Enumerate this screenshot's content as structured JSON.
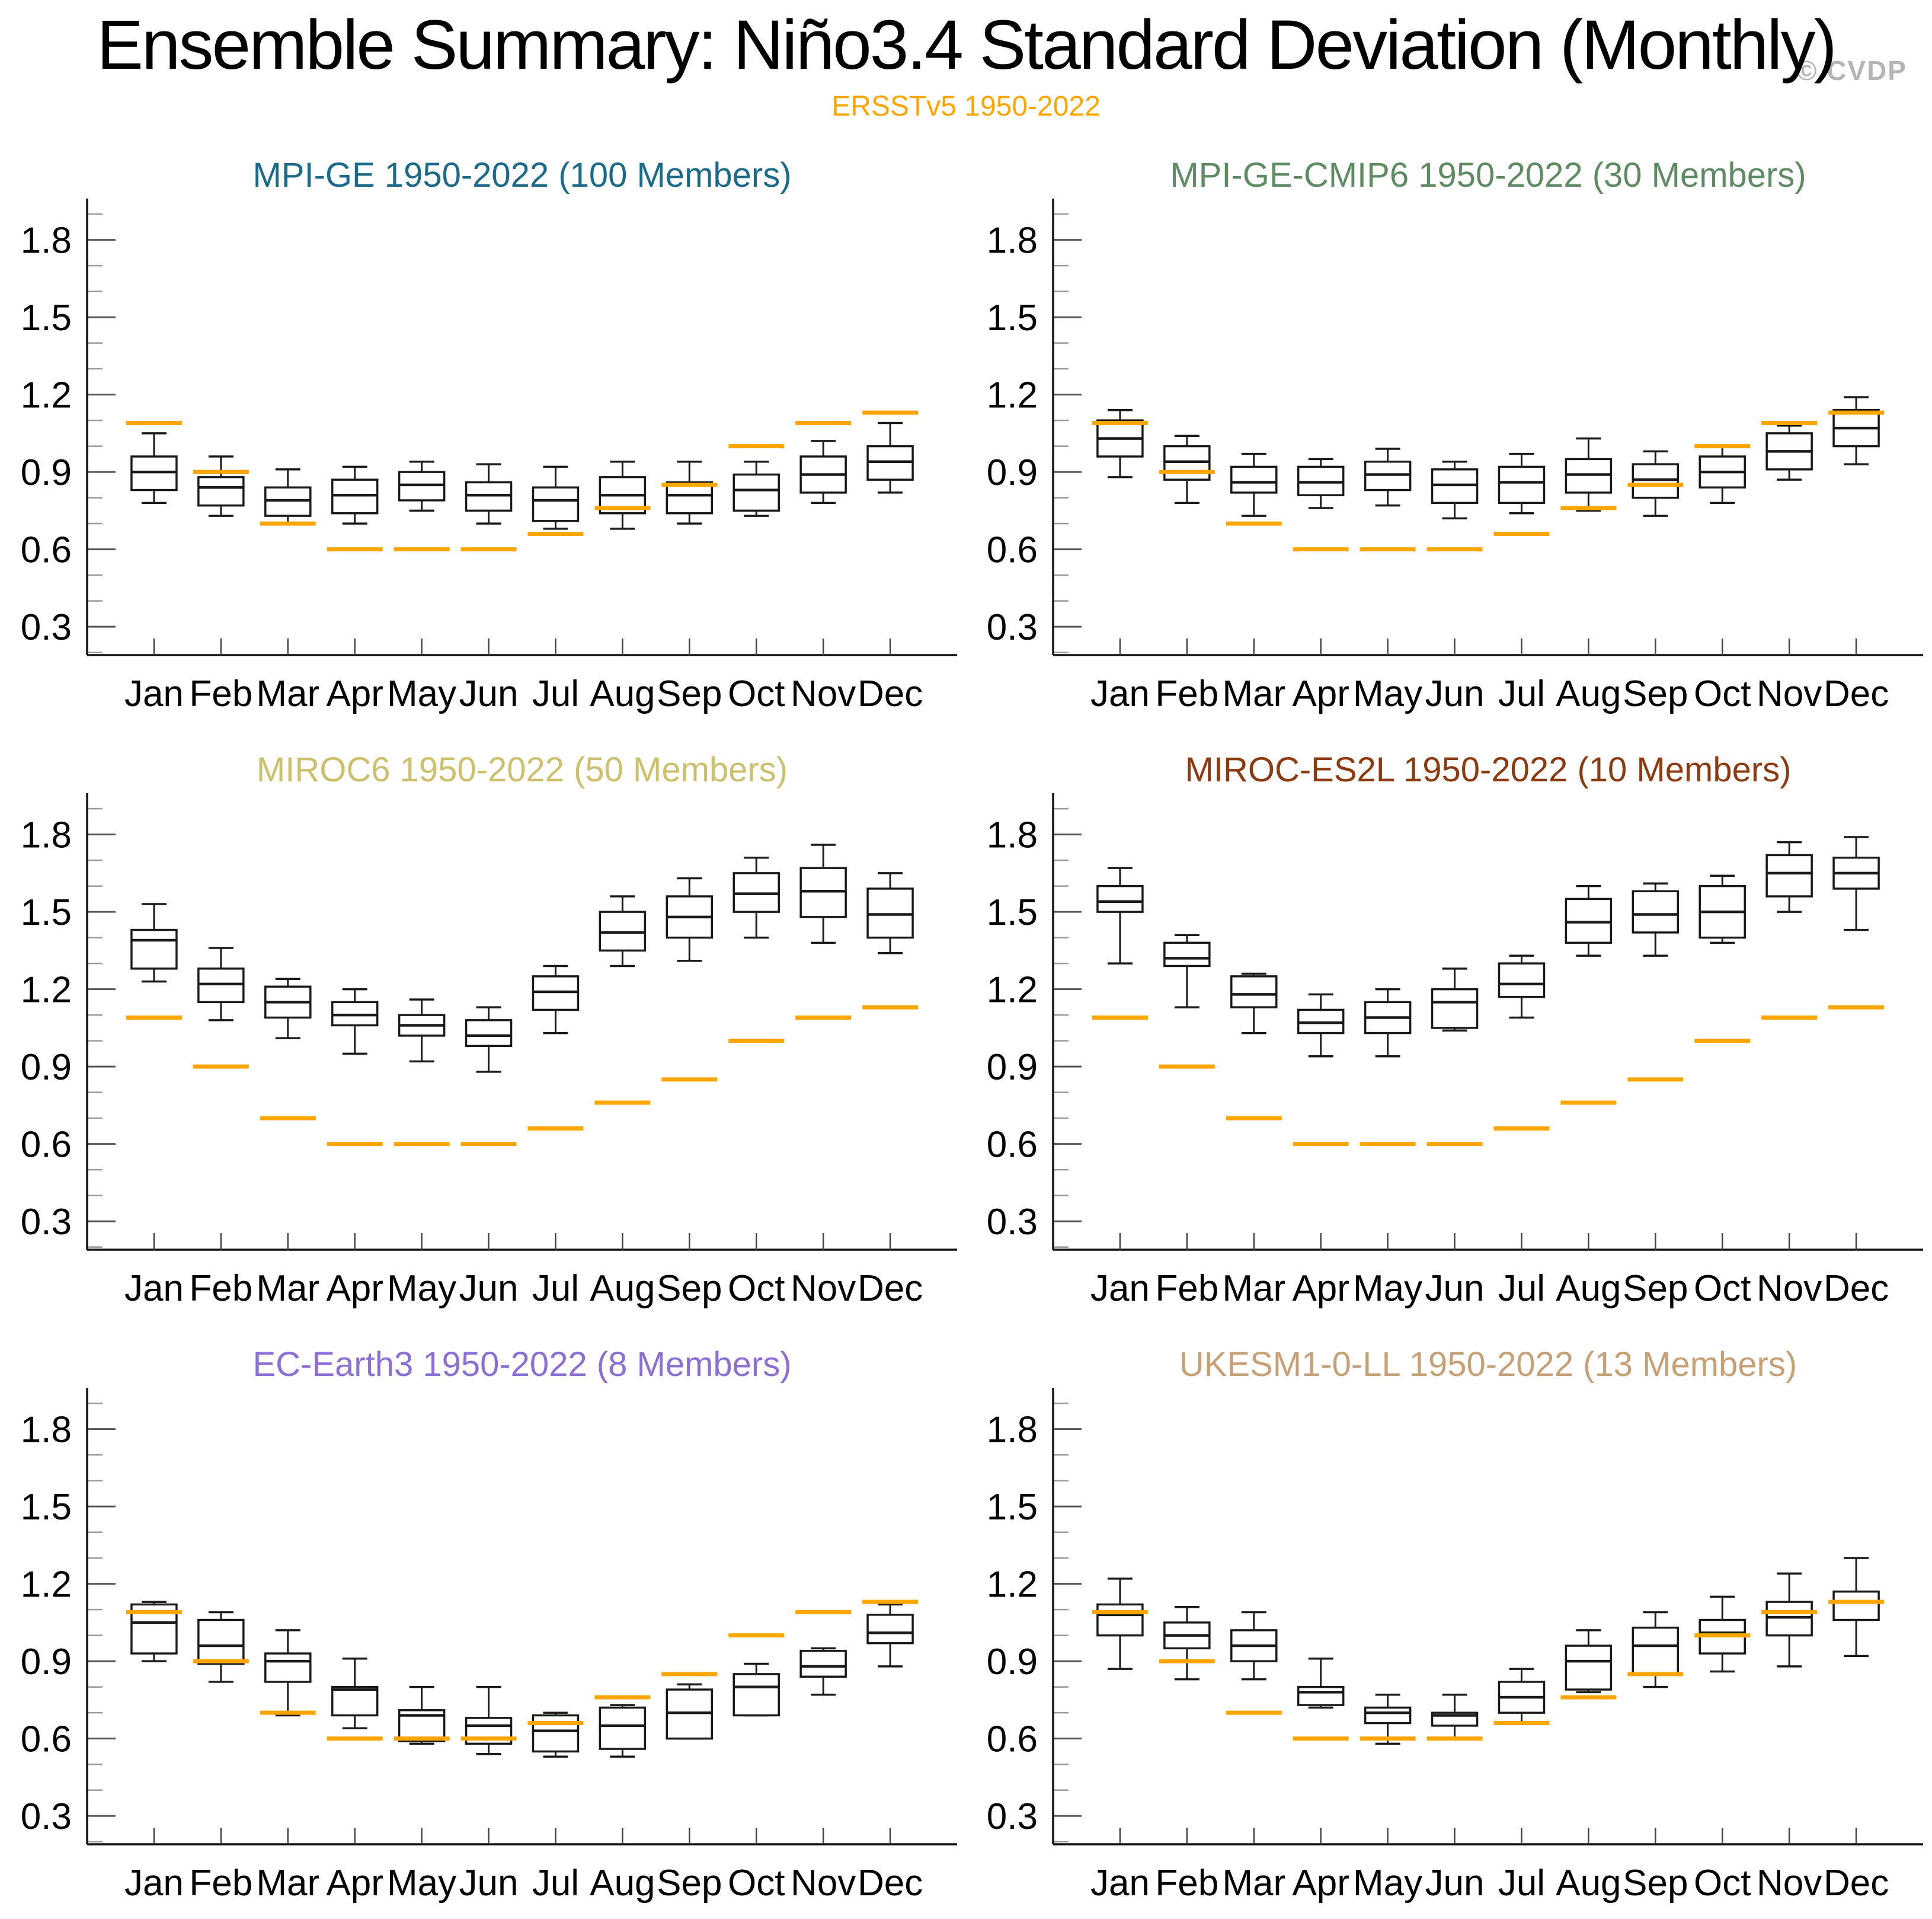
{
  "header": {
    "title": "Ensemble Summary: Niño3.4 Standard Deviation (Monthly)",
    "subtitle": "ERSSTv5 1950-2022",
    "subtitle_color": "#ffa500",
    "watermark": "© CVDP",
    "watermark_color": "#b5b5b5"
  },
  "chart_data": {
    "type": "box",
    "title": "Ensemble Summary: Niño3.4 Standard Deviation (Monthly)",
    "subtitle": "ERSSTv5 1950-2022",
    "xlabel": "",
    "ylabel": "",
    "months": [
      "Jan",
      "Feb",
      "Mar",
      "Apr",
      "May",
      "Jun",
      "Jul",
      "Aug",
      "Sep",
      "Oct",
      "Nov",
      "Dec"
    ],
    "y_ticks": [
      0.3,
      0.6,
      0.9,
      1.2,
      1.5,
      1.8
    ],
    "y_tick_labels": [
      "0.3",
      "0.6",
      "0.9",
      "1.2",
      "1.5",
      "1.8"
    ],
    "y_minor_step": 0.1,
    "ylim": [
      0.19,
      1.96
    ],
    "grid": false,
    "box_color": "#1a1a1a",
    "observation": {
      "label": "ERSSTv5 1950-2022",
      "color": "#ffa500",
      "values": [
        1.09,
        0.9,
        0.7,
        0.6,
        0.6,
        0.6,
        0.66,
        0.76,
        0.85,
        1.0,
        1.09,
        1.13
      ]
    },
    "box_stats_order": [
      "whisker_low",
      "q1",
      "median",
      "q3",
      "whisker_high"
    ],
    "panels": [
      {
        "slug": "mpi-ge",
        "title": "MPI-GE 1950-2022 (100 Members)",
        "color": "#1b6a8a",
        "boxes": [
          [
            0.78,
            0.83,
            0.9,
            0.96,
            1.05
          ],
          [
            0.73,
            0.77,
            0.84,
            0.88,
            0.96
          ],
          [
            0.7,
            0.73,
            0.79,
            0.84,
            0.91
          ],
          [
            0.7,
            0.74,
            0.81,
            0.87,
            0.92
          ],
          [
            0.75,
            0.79,
            0.85,
            0.9,
            0.94
          ],
          [
            0.7,
            0.75,
            0.81,
            0.86,
            0.93
          ],
          [
            0.68,
            0.71,
            0.79,
            0.84,
            0.92
          ],
          [
            0.68,
            0.74,
            0.81,
            0.88,
            0.94
          ],
          [
            0.7,
            0.74,
            0.81,
            0.86,
            0.94
          ],
          [
            0.73,
            0.75,
            0.83,
            0.89,
            0.94
          ],
          [
            0.78,
            0.82,
            0.89,
            0.96,
            1.02
          ],
          [
            0.82,
            0.87,
            0.94,
            1.0,
            1.09
          ]
        ]
      },
      {
        "slug": "mpi-ge-cmip6",
        "title": "MPI-GE-CMIP6 1950-2022 (30 Members)",
        "color": "#5e8b62",
        "boxes": [
          [
            0.88,
            0.96,
            1.03,
            1.1,
            1.14
          ],
          [
            0.78,
            0.87,
            0.94,
            1.0,
            1.04
          ],
          [
            0.73,
            0.82,
            0.86,
            0.92,
            0.97
          ],
          [
            0.76,
            0.81,
            0.86,
            0.92,
            0.95
          ],
          [
            0.77,
            0.83,
            0.89,
            0.94,
            0.99
          ],
          [
            0.72,
            0.78,
            0.85,
            0.91,
            0.94
          ],
          [
            0.74,
            0.78,
            0.86,
            0.92,
            0.97
          ],
          [
            0.75,
            0.82,
            0.89,
            0.95,
            1.03
          ],
          [
            0.73,
            0.8,
            0.87,
            0.93,
            0.98
          ],
          [
            0.78,
            0.84,
            0.9,
            0.96,
            1.0
          ],
          [
            0.87,
            0.91,
            0.98,
            1.05,
            1.08
          ],
          [
            0.93,
            1.0,
            1.07,
            1.14,
            1.19
          ]
        ]
      },
      {
        "slug": "miroc6",
        "title": "MIROC6 1950-2022 (50 Members)",
        "color": "#ccc06c",
        "boxes": [
          [
            1.23,
            1.28,
            1.39,
            1.43,
            1.53
          ],
          [
            1.08,
            1.15,
            1.22,
            1.28,
            1.36
          ],
          [
            1.01,
            1.09,
            1.15,
            1.21,
            1.24
          ],
          [
            0.95,
            1.06,
            1.1,
            1.15,
            1.2
          ],
          [
            0.92,
            1.02,
            1.06,
            1.1,
            1.16
          ],
          [
            0.88,
            0.98,
            1.02,
            1.08,
            1.13
          ],
          [
            1.03,
            1.12,
            1.19,
            1.25,
            1.29
          ],
          [
            1.29,
            1.35,
            1.42,
            1.5,
            1.56
          ],
          [
            1.31,
            1.4,
            1.48,
            1.56,
            1.63
          ],
          [
            1.4,
            1.5,
            1.57,
            1.65,
            1.71
          ],
          [
            1.38,
            1.48,
            1.58,
            1.67,
            1.76
          ],
          [
            1.34,
            1.4,
            1.49,
            1.59,
            1.65
          ]
        ]
      },
      {
        "slug": "miroc-es2l",
        "title": "MIROC-ES2L 1950-2022 (10 Members)",
        "color": "#8c3a10",
        "boxes": [
          [
            1.3,
            1.5,
            1.54,
            1.6,
            1.67
          ],
          [
            1.13,
            1.29,
            1.32,
            1.38,
            1.41
          ],
          [
            1.03,
            1.13,
            1.18,
            1.25,
            1.26
          ],
          [
            0.94,
            1.03,
            1.07,
            1.12,
            1.18
          ],
          [
            0.94,
            1.03,
            1.09,
            1.15,
            1.2
          ],
          [
            1.04,
            1.05,
            1.15,
            1.2,
            1.28
          ],
          [
            1.09,
            1.17,
            1.22,
            1.3,
            1.33
          ],
          [
            1.33,
            1.38,
            1.46,
            1.55,
            1.6
          ],
          [
            1.33,
            1.42,
            1.49,
            1.58,
            1.61
          ],
          [
            1.38,
            1.4,
            1.5,
            1.6,
            1.64
          ],
          [
            1.5,
            1.56,
            1.65,
            1.72,
            1.77
          ],
          [
            1.43,
            1.59,
            1.65,
            1.71,
            1.79
          ]
        ]
      },
      {
        "slug": "ec-earth3",
        "title": "EC-Earth3 1950-2022 (8 Members)",
        "color": "#8b6fd4",
        "boxes": [
          [
            0.9,
            0.93,
            1.05,
            1.12,
            1.13
          ],
          [
            0.82,
            0.89,
            0.96,
            1.06,
            1.09
          ],
          [
            0.69,
            0.82,
            0.9,
            0.93,
            1.02
          ],
          [
            0.64,
            0.69,
            0.79,
            0.8,
            0.91
          ],
          [
            0.58,
            0.59,
            0.69,
            0.71,
            0.8
          ],
          [
            0.54,
            0.58,
            0.65,
            0.68,
            0.8
          ],
          [
            0.53,
            0.55,
            0.63,
            0.69,
            0.7
          ],
          [
            0.53,
            0.56,
            0.65,
            0.72,
            0.73
          ],
          [
            0.6,
            0.6,
            0.7,
            0.79,
            0.81
          ],
          [
            0.69,
            0.69,
            0.8,
            0.85,
            0.89
          ],
          [
            0.77,
            0.84,
            0.88,
            0.94,
            0.95
          ],
          [
            0.88,
            0.97,
            1.01,
            1.08,
            1.12
          ]
        ]
      },
      {
        "slug": "ukesm1-0-ll",
        "title": "UKESM1-0-LL 1950-2022 (13 Members)",
        "color": "#c7a176",
        "boxes": [
          [
            0.87,
            1.0,
            1.08,
            1.12,
            1.22
          ],
          [
            0.83,
            0.95,
            1.0,
            1.05,
            1.11
          ],
          [
            0.83,
            0.9,
            0.96,
            1.02,
            1.09
          ],
          [
            0.72,
            0.73,
            0.78,
            0.8,
            0.91
          ],
          [
            0.58,
            0.66,
            0.7,
            0.72,
            0.77
          ],
          [
            0.6,
            0.65,
            0.69,
            0.7,
            0.77
          ],
          [
            0.66,
            0.7,
            0.76,
            0.82,
            0.87
          ],
          [
            0.78,
            0.79,
            0.9,
            0.96,
            1.02
          ],
          [
            0.8,
            0.85,
            0.96,
            1.03,
            1.09
          ],
          [
            0.86,
            0.93,
            1.01,
            1.06,
            1.15
          ],
          [
            0.88,
            1.0,
            1.07,
            1.13,
            1.24
          ],
          [
            0.92,
            1.06,
            1.13,
            1.17,
            1.3
          ]
        ]
      }
    ]
  }
}
